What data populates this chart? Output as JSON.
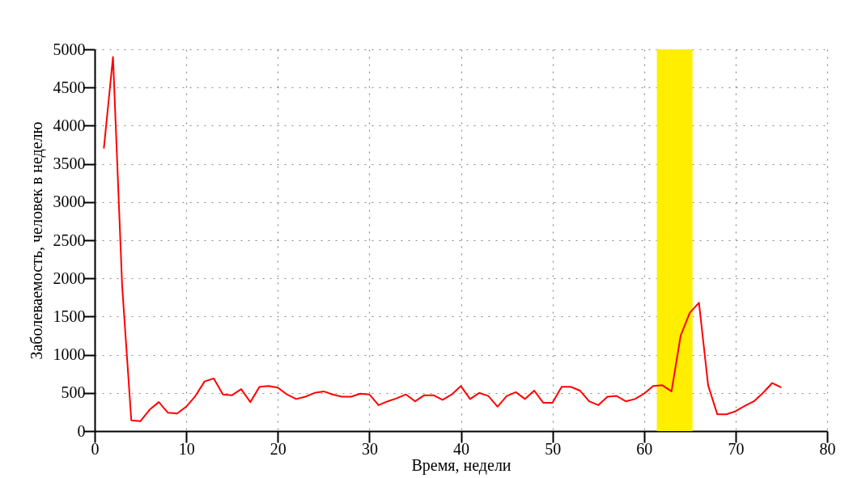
{
  "chart_data": {
    "type": "line",
    "xlabel": "Время, недели",
    "ylabel": "Заболеваемость, человек в неделю",
    "x": [
      1,
      2,
      3,
      4,
      5,
      6,
      7,
      8,
      9,
      10,
      11,
      12,
      13,
      14,
      15,
      16,
      17,
      18,
      19,
      20,
      21,
      22,
      23,
      24,
      25,
      26,
      27,
      28,
      29,
      30,
      31,
      32,
      33,
      34,
      35,
      36,
      37,
      38,
      39,
      40,
      41,
      42,
      43,
      44,
      45,
      46,
      47,
      48,
      49,
      50,
      51,
      52,
      53,
      54,
      55,
      56,
      57,
      58,
      59,
      60,
      61,
      62,
      63,
      64,
      65,
      66,
      67,
      68,
      69,
      70,
      71,
      72,
      73,
      74,
      75
    ],
    "series": [
      {
        "color": "#ff0000",
        "values": [
          3700,
          4900,
          1900,
          140,
          130,
          280,
          380,
          240,
          230,
          320,
          460,
          650,
          690,
          480,
          470,
          550,
          380,
          580,
          590,
          570,
          480,
          420,
          450,
          500,
          520,
          480,
          450,
          450,
          490,
          480,
          340,
          390,
          430,
          480,
          390,
          470,
          470,
          410,
          480,
          590,
          420,
          500,
          460,
          320,
          460,
          510,
          420,
          530,
          370,
          370,
          580,
          580,
          530,
          390,
          340,
          450,
          460,
          390,
          420,
          490,
          590,
          600,
          520,
          1250,
          1550,
          1680,
          600,
          220,
          220,
          260,
          330,
          390,
          500,
          630,
          570
        ]
      }
    ],
    "xlim": [
      0,
      80
    ],
    "xticks": [
      0,
      10,
      20,
      30,
      40,
      50,
      60,
      70,
      80
    ],
    "ylim": [
      0,
      5000
    ],
    "yticks": [
      0,
      500,
      1000,
      1500,
      2000,
      2500,
      3000,
      3500,
      4000,
      4500,
      5000
    ],
    "bands": [
      {
        "axis": "x",
        "from": 61.4,
        "to": 65.3,
        "color": "#ffee00"
      }
    ],
    "grid": true,
    "line_style": "solid"
  }
}
